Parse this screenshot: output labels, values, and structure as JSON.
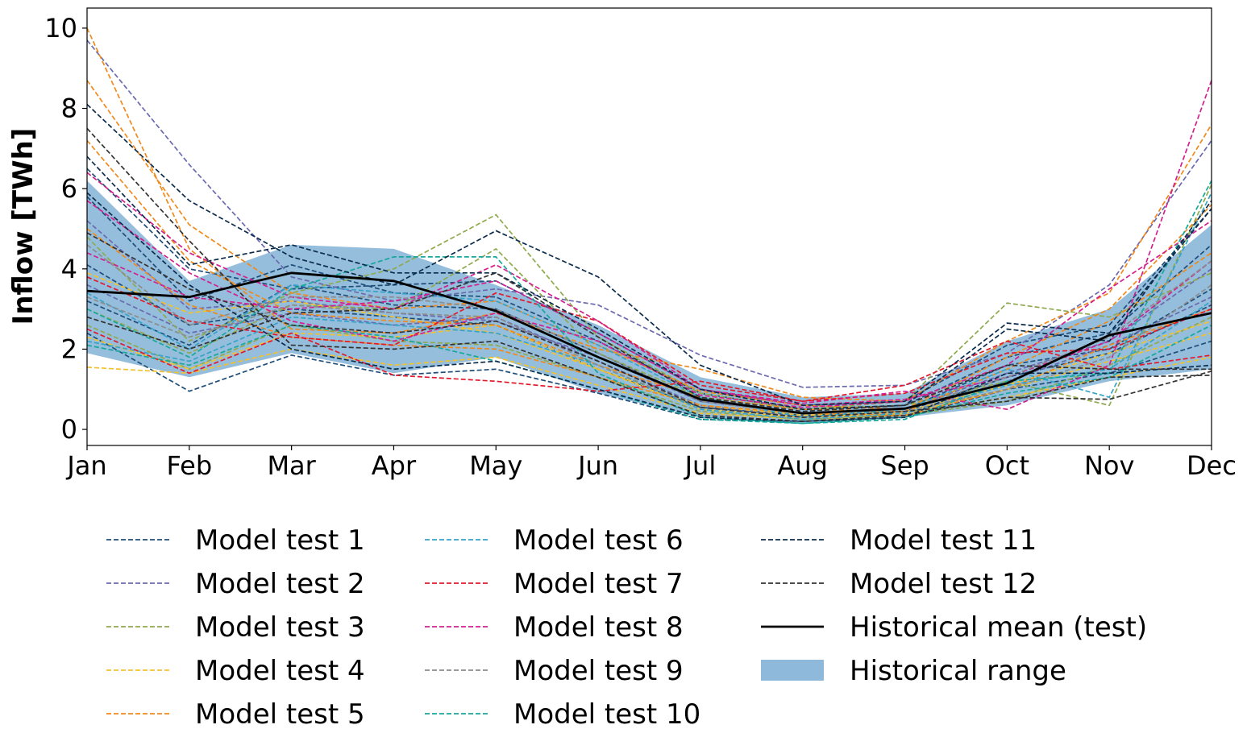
{
  "chart_data": {
    "type": "line",
    "title": "",
    "xlabel": "",
    "ylabel": "Inflow [TWh]",
    "ylim": [
      -0.4,
      10.5
    ],
    "yticks": [
      0,
      2,
      4,
      6,
      8,
      10
    ],
    "categories": [
      "Jan",
      "Feb",
      "Mar",
      "Apr",
      "May",
      "Jun",
      "Jul",
      "Aug",
      "Sep",
      "Oct",
      "Nov",
      "Dec"
    ],
    "grid": false,
    "legend_position": "below",
    "historical_range": {
      "name": "Historical range",
      "color": "#8fb9da",
      "low": [
        1.9,
        1.3,
        1.9,
        1.4,
        1.8,
        0.9,
        0.3,
        0.15,
        0.3,
        0.6,
        1.2,
        1.5
      ],
      "high": [
        6.2,
        3.7,
        4.6,
        4.5,
        3.6,
        2.6,
        1.3,
        0.8,
        0.9,
        2.2,
        3.0,
        5.1
      ]
    },
    "historical_mean": {
      "name": "Historical mean (test)",
      "color": "#000000",
      "values": [
        3.45,
        3.3,
        3.9,
        3.7,
        2.95,
        1.8,
        0.75,
        0.4,
        0.52,
        1.15,
        2.35,
        2.9
      ]
    },
    "series": [
      {
        "name": "Model test 1",
        "color": "#1f4e79",
        "runs": [
          [
            3.2,
            2.1,
            3.6,
            3.1,
            3.0,
            1.9,
            0.7,
            0.4,
            0.5,
            1.6,
            2.0,
            3.5
          ],
          [
            2.4,
            0.95,
            1.85,
            1.35,
            1.5,
            0.9,
            0.25,
            0.2,
            0.3,
            1.0,
            1.4,
            2.2
          ],
          [
            5.8,
            3.2,
            4.1,
            3.4,
            3.3,
            2.2,
            0.9,
            0.5,
            0.6,
            1.8,
            2.4,
            4.6
          ],
          [
            4.1,
            2.6,
            3.0,
            2.8,
            2.6,
            1.5,
            0.55,
            0.35,
            0.45,
            1.3,
            1.9,
            3.1
          ],
          [
            6.5,
            4.0,
            3.5,
            3.6,
            3.7,
            2.4,
            1.0,
            0.6,
            0.7,
            2.1,
            2.6,
            5.5
          ]
        ]
      },
      {
        "name": "Model test 2",
        "color": "#6b6aaf",
        "runs": [
          [
            9.7,
            6.6,
            3.8,
            3.2,
            3.5,
            3.1,
            1.85,
            1.05,
            1.1,
            1.9,
            3.6,
            7.2
          ],
          [
            5.2,
            3.0,
            3.2,
            2.9,
            2.7,
            1.8,
            0.7,
            0.4,
            0.5,
            1.4,
            2.2,
            4.0
          ],
          [
            3.6,
            2.4,
            2.9,
            2.6,
            2.8,
            1.7,
            0.6,
            0.3,
            0.4,
            1.2,
            2.1,
            3.3
          ]
        ]
      },
      {
        "name": "Model test 3",
        "color": "#8faa4e",
        "runs": [
          [
            4.8,
            2.2,
            3.4,
            4.0,
            5.35,
            2.3,
            0.9,
            0.5,
            0.7,
            3.15,
            2.8,
            3.9
          ],
          [
            3.0,
            1.9,
            3.1,
            3.0,
            4.5,
            1.9,
            0.8,
            0.5,
            0.6,
            1.2,
            0.6,
            6.1
          ],
          [
            2.6,
            1.5,
            2.6,
            2.2,
            2.1,
            1.3,
            0.45,
            0.25,
            0.35,
            0.7,
            1.6,
            2.8
          ]
        ]
      },
      {
        "name": "Model test 4",
        "color": "#f2c12e",
        "runs": [
          [
            1.55,
            1.4,
            2.0,
            1.6,
            1.8,
            1.1,
            0.4,
            0.25,
            0.35,
            0.8,
            1.3,
            1.8
          ],
          [
            2.3,
            1.5,
            2.4,
            2.3,
            2.6,
            1.5,
            0.5,
            0.3,
            0.4,
            1.0,
            1.7,
            2.4
          ],
          [
            3.9,
            2.9,
            3.2,
            2.8,
            2.4,
            1.5,
            0.6,
            0.35,
            0.45,
            1.1,
            1.9,
            2.7
          ]
        ]
      },
      {
        "name": "Model test 5",
        "color": "#f08a1c",
        "runs": [
          [
            10.0,
            4.5,
            2.5,
            2.4,
            2.9,
            2.0,
            1.5,
            0.8,
            0.7,
            2.2,
            3.4,
            7.6
          ],
          [
            8.7,
            5.1,
            3.4,
            3.0,
            3.2,
            2.1,
            0.95,
            0.6,
            0.5,
            1.8,
            3.0,
            5.6
          ],
          [
            7.2,
            4.2,
            2.9,
            2.7,
            2.6,
            1.6,
            0.8,
            0.5,
            0.45,
            1.5,
            2.7,
            4.4
          ],
          [
            5.0,
            3.1,
            2.3,
            2.1,
            2.0,
            1.3,
            0.6,
            0.4,
            0.35,
            1.0,
            2.1,
            3.0
          ]
        ]
      },
      {
        "name": "Model test 6",
        "color": "#36a3c9",
        "runs": [
          [
            3.4,
            2.0,
            3.6,
            3.4,
            3.2,
            2.1,
            0.8,
            0.3,
            0.5,
            1.5,
            0.8,
            5.9
          ],
          [
            2.2,
            1.7,
            2.8,
            2.6,
            2.4,
            1.6,
            0.5,
            0.25,
            0.4,
            1.1,
            1.5,
            3.2
          ]
        ]
      },
      {
        "name": "Model test 7",
        "color": "#e2192c",
        "runs": [
          [
            2.5,
            1.4,
            2.4,
            1.35,
            1.2,
            0.95,
            1.2,
            0.7,
            1.1,
            2.2,
            1.5,
            1.85
          ],
          [
            3.8,
            2.7,
            2.3,
            2.1,
            3.4,
            2.7,
            1.1,
            0.7,
            0.9,
            1.9,
            2.0,
            3.0
          ]
        ]
      },
      {
        "name": "Model test 8",
        "color": "#d3208e",
        "runs": [
          [
            6.4,
            4.4,
            3.3,
            3.0,
            4.1,
            2.7,
            1.0,
            0.65,
            0.95,
            0.5,
            1.6,
            8.7
          ],
          [
            5.7,
            3.9,
            2.7,
            2.2,
            2.9,
            2.2,
            0.85,
            0.55,
            0.7,
            1.6,
            3.5,
            5.2
          ],
          [
            4.4,
            3.3,
            3.0,
            3.2,
            3.7,
            2.4,
            1.0,
            0.6,
            0.75,
            1.3,
            2.2,
            4.2
          ]
        ]
      },
      {
        "name": "Model test 9",
        "color": "#8c8c8c",
        "runs": [
          [
            4.6,
            2.6,
            3.3,
            3.3,
            3.0,
            1.9,
            0.7,
            0.4,
            0.5,
            1.3,
            2.3,
            4.2
          ],
          [
            3.3,
            2.3,
            3.1,
            2.9,
            2.8,
            1.6,
            0.55,
            0.3,
            0.45,
            1.0,
            1.8,
            3.6
          ]
        ]
      },
      {
        "name": "Model test 10",
        "color": "#17a89b",
        "runs": [
          [
            3.0,
            1.8,
            3.5,
            4.3,
            4.3,
            1.4,
            0.3,
            0.15,
            0.25,
            1.2,
            1.4,
            6.2
          ],
          [
            2.1,
            1.6,
            2.6,
            2.3,
            1.7,
            1.0,
            0.25,
            0.15,
            0.3,
            0.9,
            1.3,
            2.6
          ]
        ]
      },
      {
        "name": "Model test 11",
        "color": "#0b2c4c",
        "runs": [
          [
            8.1,
            5.7,
            4.3,
            3.6,
            4.95,
            3.8,
            1.6,
            0.6,
            0.7,
            2.65,
            2.4,
            5.5
          ],
          [
            6.8,
            4.1,
            4.6,
            3.9,
            3.9,
            2.5,
            1.0,
            0.5,
            0.6,
            2.5,
            2.2,
            5.7
          ],
          [
            5.9,
            3.6,
            2.0,
            1.5,
            1.7,
            1.0,
            0.3,
            0.2,
            0.3,
            1.4,
            1.4,
            1.6
          ]
        ]
      },
      {
        "name": "Model test 12",
        "color": "#333333",
        "runs": [
          [
            7.5,
            4.7,
            2.1,
            2.0,
            2.2,
            1.3,
            0.35,
            0.2,
            0.35,
            0.8,
            0.75,
            1.45
          ],
          [
            4.9,
            3.5,
            2.6,
            2.4,
            2.7,
            1.7,
            0.55,
            0.3,
            0.45,
            0.7,
            1.3,
            1.35
          ],
          [
            2.8,
            2.0,
            2.9,
            3.0,
            3.9,
            2.3,
            0.8,
            0.45,
            0.6,
            1.6,
            1.5,
            1.5
          ]
        ]
      }
    ]
  }
}
